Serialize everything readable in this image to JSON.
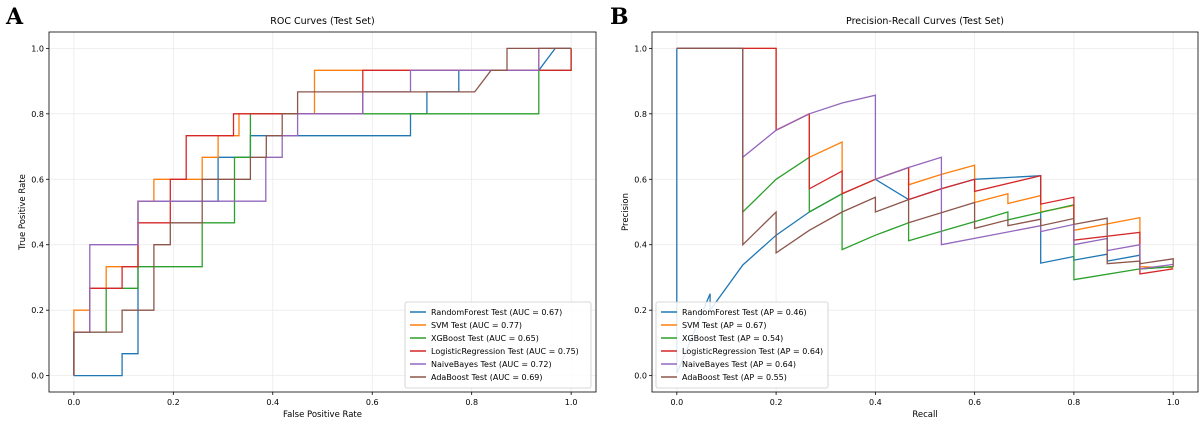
{
  "panels": [
    {
      "letter": "A"
    },
    {
      "letter": "B"
    }
  ],
  "chart_data": [
    {
      "type": "line",
      "title": "ROC Curves (Test Set)",
      "xlabel": "False Positive Rate",
      "ylabel": "True Positive Rate",
      "xlim": [
        -0.05,
        1.05
      ],
      "ylim": [
        -0.05,
        1.05
      ],
      "xticks": [
        "0.0",
        "0.2",
        "0.4",
        "0.6",
        "0.8",
        "1.0"
      ],
      "yticks": [
        "0.0",
        "0.2",
        "0.4",
        "0.6",
        "0.8",
        "1.0"
      ],
      "grid": true,
      "legend_placement": "lower-right",
      "series": [
        {
          "name": "RandomForest Test (AUC = 0.67)",
          "color": "#1f77b4",
          "points": [
            [
              0,
              0
            ],
            [
              0.097,
              0
            ],
            [
              0.097,
              0.067
            ],
            [
              0.129,
              0.067
            ],
            [
              0.129,
              0.533
            ],
            [
              0.29,
              0.533
            ],
            [
              0.29,
              0.667
            ],
            [
              0.355,
              0.667
            ],
            [
              0.355,
              0.733
            ],
            [
              0.677,
              0.733
            ],
            [
              0.677,
              0.8
            ],
            [
              0.71,
              0.8
            ],
            [
              0.71,
              0.867
            ],
            [
              0.774,
              0.867
            ],
            [
              0.774,
              0.933
            ],
            [
              0.935,
              0.933
            ],
            [
              0.968,
              1
            ],
            [
              1,
              1
            ]
          ]
        },
        {
          "name": "SVM Test (AUC = 0.77)",
          "color": "#ff7f0e",
          "points": [
            [
              0,
              0
            ],
            [
              0,
              0.2
            ],
            [
              0.032,
              0.2
            ],
            [
              0.032,
              0.267
            ],
            [
              0.065,
              0.267
            ],
            [
              0.065,
              0.333
            ],
            [
              0.097,
              0.333
            ],
            [
              0.129,
              0.333
            ],
            [
              0.129,
              0.533
            ],
            [
              0.161,
              0.533
            ],
            [
              0.161,
              0.6
            ],
            [
              0.258,
              0.6
            ],
            [
              0.258,
              0.667
            ],
            [
              0.29,
              0.667
            ],
            [
              0.29,
              0.733
            ],
            [
              0.332,
              0.733
            ],
            [
              0.332,
              0.8
            ],
            [
              0.484,
              0.8
            ],
            [
              0.484,
              0.933
            ],
            [
              0.935,
              0.933
            ],
            [
              0.935,
              1
            ],
            [
              1,
              1
            ]
          ]
        },
        {
          "name": "XGBoost Test (AUC = 0.65)",
          "color": "#2ca02c",
          "points": [
            [
              0,
              0
            ],
            [
              0,
              0.133
            ],
            [
              0.065,
              0.133
            ],
            [
              0.065,
              0.267
            ],
            [
              0.129,
              0.267
            ],
            [
              0.129,
              0.333
            ],
            [
              0.258,
              0.333
            ],
            [
              0.258,
              0.467
            ],
            [
              0.323,
              0.467
            ],
            [
              0.323,
              0.667
            ],
            [
              0.355,
              0.667
            ],
            [
              0.355,
              0.8
            ],
            [
              0.935,
              0.8
            ],
            [
              0.935,
              0.933
            ],
            [
              1,
              0.933
            ],
            [
              1,
              1
            ]
          ]
        },
        {
          "name": "LogisticRegression Test (AUC = 0.75)",
          "color": "#d62728",
          "points": [
            [
              0,
              0
            ],
            [
              0,
              0.133
            ],
            [
              0.032,
              0.133
            ],
            [
              0.032,
              0.267
            ],
            [
              0.097,
              0.267
            ],
            [
              0.097,
              0.333
            ],
            [
              0.129,
              0.333
            ],
            [
              0.129,
              0.467
            ],
            [
              0.194,
              0.467
            ],
            [
              0.194,
              0.6
            ],
            [
              0.226,
              0.6
            ],
            [
              0.226,
              0.733
            ],
            [
              0.321,
              0.733
            ],
            [
              0.321,
              0.8
            ],
            [
              0.581,
              0.8
            ],
            [
              0.581,
              0.933
            ],
            [
              1,
              0.933
            ],
            [
              1,
              1
            ]
          ]
        },
        {
          "name": "NaiveBayes Test (AUC = 0.72)",
          "color": "#9467bd",
          "points": [
            [
              0,
              0
            ],
            [
              0,
              0.133
            ],
            [
              0.032,
              0.133
            ],
            [
              0.032,
              0.4
            ],
            [
              0.129,
              0.4
            ],
            [
              0.129,
              0.533
            ],
            [
              0.386,
              0.533
            ],
            [
              0.386,
              0.667
            ],
            [
              0.419,
              0.667
            ],
            [
              0.419,
              0.733
            ],
            [
              0.45,
              0.733
            ],
            [
              0.45,
              0.8
            ],
            [
              0.581,
              0.8
            ],
            [
              0.581,
              0.867
            ],
            [
              0.677,
              0.867
            ],
            [
              0.677,
              0.933
            ],
            [
              0.935,
              0.933
            ],
            [
              0.935,
              1
            ],
            [
              1,
              1
            ]
          ]
        },
        {
          "name": "AdaBoost Test (AUC = 0.69)",
          "color": "#8c564b",
          "points": [
            [
              0,
              0
            ],
            [
              0,
              0.133
            ],
            [
              0.097,
              0.133
            ],
            [
              0.097,
              0.2
            ],
            [
              0.161,
              0.2
            ],
            [
              0.161,
              0.4
            ],
            [
              0.194,
              0.4
            ],
            [
              0.194,
              0.467
            ],
            [
              0.258,
              0.467
            ],
            [
              0.258,
              0.6
            ],
            [
              0.355,
              0.6
            ],
            [
              0.355,
              0.667
            ],
            [
              0.387,
              0.667
            ],
            [
              0.387,
              0.733
            ],
            [
              0.419,
              0.733
            ],
            [
              0.419,
              0.8
            ],
            [
              0.45,
              0.8
            ],
            [
              0.45,
              0.867
            ],
            [
              0.806,
              0.867
            ],
            [
              0.839,
              0.933
            ],
            [
              0.871,
              0.933
            ],
            [
              0.871,
              1
            ],
            [
              1,
              1
            ]
          ]
        }
      ]
    },
    {
      "type": "line",
      "title": "Precision-Recall Curves (Test Set)",
      "xlabel": "Recall",
      "ylabel": "Precision",
      "xlim": [
        -0.05,
        1.05
      ],
      "ylim": [
        -0.05,
        1.05
      ],
      "xticks": [
        "0.0",
        "0.2",
        "0.4",
        "0.6",
        "0.8",
        "1.0"
      ],
      "yticks": [
        "0.0",
        "0.2",
        "0.4",
        "0.6",
        "0.8",
        "1.0"
      ],
      "grid": true,
      "legend_placement": "lower-left",
      "series": [
        {
          "name": "RandomForest Test (AP = 0.46)",
          "color": "#1f77b4",
          "points": [
            [
              0,
              1
            ],
            [
              0,
              0.007
            ],
            [
              0.067,
              0.25
            ],
            [
              0.067,
              0.2
            ],
            [
              0.133,
              0.338
            ],
            [
              0.2,
              0.429
            ],
            [
              0.267,
              0.5
            ],
            [
              0.333,
              0.556
            ],
            [
              0.4,
              0.6
            ],
            [
              0.467,
              0.538
            ],
            [
              0.533,
              0.571
            ],
            [
              0.6,
              0.6
            ],
            [
              0.733,
              0.611
            ],
            [
              0.733,
              0.344
            ],
            [
              0.8,
              0.364
            ],
            [
              0.8,
              0.353
            ],
            [
              0.867,
              0.371
            ],
            [
              0.867,
              0.35
            ],
            [
              0.933,
              0.368
            ],
            [
              0.933,
              0.326
            ],
            [
              1,
              0.333
            ]
          ]
        },
        {
          "name": "SVM Test (AP = 0.67)",
          "color": "#ff7f0e",
          "points": [
            [
              0,
              1
            ],
            [
              0.2,
              1
            ],
            [
              0.2,
              0.75
            ],
            [
              0.267,
              0.8
            ],
            [
              0.267,
              0.667
            ],
            [
              0.333,
              0.714
            ],
            [
              0.333,
              0.556
            ],
            [
              0.4,
              0.6
            ],
            [
              0.467,
              0.636
            ],
            [
              0.467,
              0.583
            ],
            [
              0.533,
              0.615
            ],
            [
              0.6,
              0.643
            ],
            [
              0.6,
              0.529
            ],
            [
              0.667,
              0.556
            ],
            [
              0.667,
              0.526
            ],
            [
              0.733,
              0.55
            ],
            [
              0.733,
              0.5
            ],
            [
              0.8,
              0.52
            ],
            [
              0.8,
              0.444
            ],
            [
              0.933,
              0.483
            ],
            [
              0.933,
              0.333
            ],
            [
              1,
              0.33
            ]
          ]
        },
        {
          "name": "XGBoost Test (AP = 0.54)",
          "color": "#2ca02c",
          "points": [
            [
              0,
              1
            ],
            [
              0.133,
              1
            ],
            [
              0.133,
              0.5
            ],
            [
              0.2,
              0.6
            ],
            [
              0.267,
              0.667
            ],
            [
              0.267,
              0.5
            ],
            [
              0.333,
              0.556
            ],
            [
              0.333,
              0.385
            ],
            [
              0.4,
              0.429
            ],
            [
              0.467,
              0.467
            ],
            [
              0.467,
              0.412
            ],
            [
              0.667,
              0.5
            ],
            [
              0.667,
              0.476
            ],
            [
              0.8,
              0.522
            ],
            [
              0.8,
              0.293
            ],
            [
              0.933,
              0.326
            ],
            [
              1,
              0.333
            ]
          ]
        },
        {
          "name": "LogisticRegression Test (AP = 0.64)",
          "color": "#d62728",
          "points": [
            [
              0,
              1
            ],
            [
              0.2,
              1
            ],
            [
              0.2,
              0.75
            ],
            [
              0.267,
              0.8
            ],
            [
              0.267,
              0.571
            ],
            [
              0.333,
              0.625
            ],
            [
              0.333,
              0.556
            ],
            [
              0.4,
              0.6
            ],
            [
              0.467,
              0.636
            ],
            [
              0.467,
              0.538
            ],
            [
              0.533,
              0.571
            ],
            [
              0.6,
              0.6
            ],
            [
              0.6,
              0.563
            ],
            [
              0.733,
              0.611
            ],
            [
              0.733,
              0.524
            ],
            [
              0.8,
              0.545
            ],
            [
              0.8,
              0.414
            ],
            [
              0.933,
              0.438
            ],
            [
              0.933,
              0.311
            ],
            [
              1,
              0.326
            ]
          ]
        },
        {
          "name": "NaiveBayes Test (AP = 0.64)",
          "color": "#9467bd",
          "points": [
            [
              0,
              1
            ],
            [
              0.133,
              1
            ],
            [
              0.133,
              0.667
            ],
            [
              0.2,
              0.75
            ],
            [
              0.267,
              0.8
            ],
            [
              0.333,
              0.833
            ],
            [
              0.4,
              0.857
            ],
            [
              0.4,
              0.6
            ],
            [
              0.467,
              0.636
            ],
            [
              0.533,
              0.667
            ],
            [
              0.533,
              0.4
            ],
            [
              0.733,
              0.458
            ],
            [
              0.733,
              0.44
            ],
            [
              0.8,
              0.462
            ],
            [
              0.8,
              0.4
            ],
            [
              0.867,
              0.419
            ],
            [
              0.867,
              0.382
            ],
            [
              0.933,
              0.4
            ],
            [
              0.933,
              0.326
            ],
            [
              1,
              0.34
            ]
          ]
        },
        {
          "name": "AdaBoost Test (AP = 0.55)",
          "color": "#8c564b",
          "points": [
            [
              0,
              1
            ],
            [
              0.133,
              1
            ],
            [
              0.133,
              0.4
            ],
            [
              0.2,
              0.5
            ],
            [
              0.2,
              0.375
            ],
            [
              0.267,
              0.444
            ],
            [
              0.333,
              0.5
            ],
            [
              0.4,
              0.545
            ],
            [
              0.4,
              0.5
            ],
            [
              0.467,
              0.538
            ],
            [
              0.467,
              0.467
            ],
            [
              0.6,
              0.529
            ],
            [
              0.6,
              0.45
            ],
            [
              0.667,
              0.476
            ],
            [
              0.667,
              0.458
            ],
            [
              0.733,
              0.478
            ],
            [
              0.733,
              0.458
            ],
            [
              0.8,
              0.48
            ],
            [
              0.8,
              0.462
            ],
            [
              0.867,
              0.481
            ],
            [
              0.867,
              0.342
            ],
            [
              0.933,
              0.35
            ],
            [
              0.933,
              0.342
            ],
            [
              1,
              0.357
            ],
            [
              1,
              0.333
            ]
          ]
        }
      ]
    }
  ]
}
